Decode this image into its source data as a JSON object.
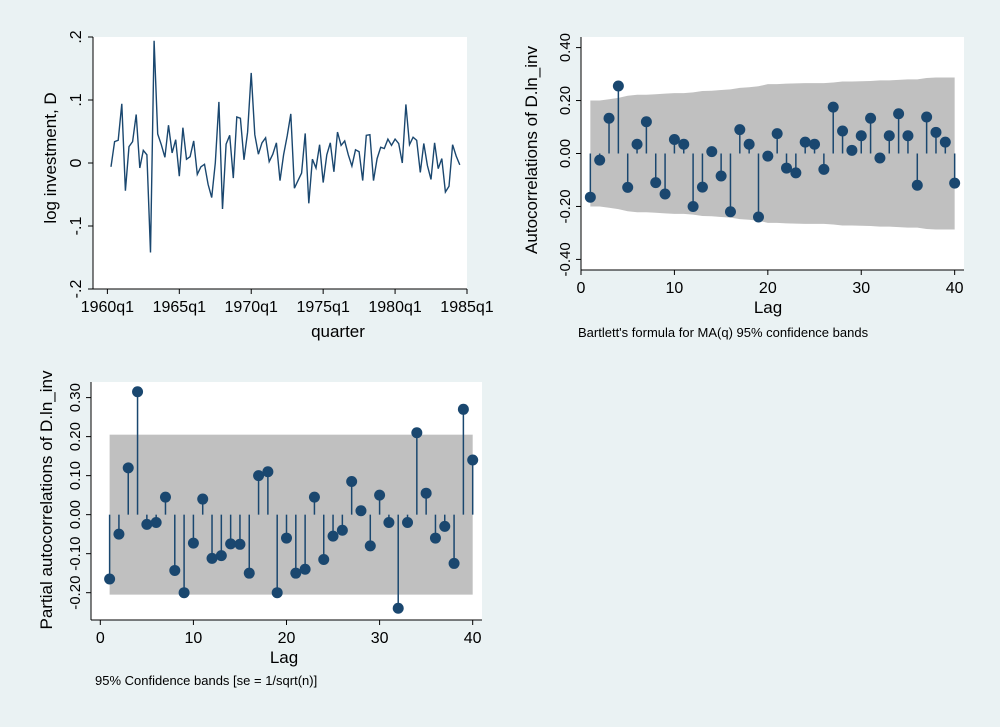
{
  "colors": {
    "background": "#eaf2f3",
    "panel": "#ffffff",
    "series": "#1a476f",
    "band": "#c0c0c0",
    "axis": "#000000"
  },
  "chart_data": [
    {
      "type": "line",
      "title": "",
      "xlabel": "quarter",
      "ylabel": "log investment, D",
      "x_start": "1960q2",
      "xlim": [
        "1959q1",
        "1985q1"
      ],
      "ylim": [
        -0.2,
        0.2
      ],
      "xticks": [
        "1960q1",
        "1965q1",
        "1970q1",
        "1975q1",
        "1980q1",
        "1985q1"
      ],
      "yticks": [
        ".2",
        ".1",
        "0",
        "-.1",
        "-.2"
      ],
      "grid": false,
      "y": [
        -0.006,
        0.034,
        0.036,
        0.094,
        -0.044,
        0.026,
        0.034,
        0.077,
        -0.008,
        0.02,
        0.013,
        -0.142,
        0.194,
        0.046,
        0.029,
        0.009,
        0.06,
        0.016,
        0.037,
        -0.021,
        0.056,
        0.006,
        0.01,
        0.035,
        -0.018,
        -0.006,
        -0.002,
        -0.034,
        -0.055,
        0.0,
        0.097,
        -0.073,
        0.03,
        0.044,
        -0.024,
        0.073,
        0.071,
        0.005,
        0.049,
        0.143,
        0.045,
        0.014,
        0.032,
        0.04,
        0.002,
        0.014,
        0.032,
        -0.028,
        0.013,
        0.043,
        0.078,
        -0.04,
        -0.028,
        -0.016,
        0.047,
        -0.064,
        0.006,
        -0.008,
        0.029,
        -0.031,
        0.013,
        0.032,
        -0.014,
        0.049,
        0.028,
        0.035,
        0.013,
        -0.005,
        0.021,
        0.018,
        -0.028,
        0.044,
        0.045,
        -0.028,
        0.007,
        0.025,
        0.023,
        0.038,
        0.028,
        0.038,
        0.031,
        0.0,
        0.093,
        0.029,
        0.041,
        0.036,
        -0.015,
        0.031,
        -0.004,
        -0.026,
        0.032,
        -0.009,
        0.007,
        -0.046,
        -0.037,
        0.029,
        0.011,
        -0.003
      ]
    },
    {
      "type": "line",
      "subtype": "acf",
      "xlabel": "Lag",
      "ylabel": "Autocorrelations of D.ln_inv",
      "note": "Bartlett's formula for MA(q) 95% confidence bands",
      "xlim": [
        0,
        41
      ],
      "ylim": [
        -0.44,
        0.44
      ],
      "xticks": [
        "0",
        "10",
        "20",
        "30",
        "40"
      ],
      "yticks": [
        "0.40",
        "0.20",
        "0.00",
        "-0.20",
        "-0.40"
      ],
      "grid": false,
      "x": [
        1,
        2,
        3,
        4,
        5,
        6,
        7,
        8,
        9,
        10,
        11,
        12,
        13,
        14,
        15,
        16,
        17,
        18,
        19,
        20,
        21,
        22,
        23,
        24,
        25,
        26,
        27,
        28,
        29,
        30,
        31,
        32,
        33,
        34,
        35,
        36,
        37,
        38,
        39,
        40
      ],
      "values": [
        -0.165,
        -0.025,
        0.133,
        0.255,
        -0.128,
        0.035,
        0.12,
        -0.11,
        -0.153,
        0.053,
        0.035,
        -0.2,
        -0.127,
        0.007,
        -0.085,
        -0.22,
        0.09,
        0.035,
        -0.24,
        -0.01,
        0.075,
        -0.055,
        -0.073,
        0.043,
        0.035,
        -0.06,
        0.175,
        0.085,
        0.012,
        0.067,
        0.133,
        -0.017,
        0.067,
        0.15,
        0.067,
        -0.12,
        0.138,
        0.08,
        0.043,
        -0.112
      ],
      "band": [
        0.2,
        0.2,
        0.205,
        0.21,
        0.218,
        0.222,
        0.222,
        0.224,
        0.226,
        0.228,
        0.228,
        0.231,
        0.236,
        0.237,
        0.24,
        0.242,
        0.248,
        0.25,
        0.254,
        0.262,
        0.262,
        0.264,
        0.265,
        0.266,
        0.266,
        0.266,
        0.268,
        0.272,
        0.272,
        0.273,
        0.274,
        0.276,
        0.276,
        0.278,
        0.28,
        0.28,
        0.285,
        0.287,
        0.287,
        0.287
      ]
    },
    {
      "type": "line",
      "subtype": "pacf",
      "xlabel": "Lag",
      "ylabel": "Partial autocorrelations of D.ln_inv",
      "note": "95% Confidence bands [se = 1/sqrt(n)]",
      "xlim": [
        -1,
        41
      ],
      "ylim": [
        -0.27,
        0.34
      ],
      "xticks": [
        "0",
        "10",
        "20",
        "30",
        "40"
      ],
      "yticks": [
        "0.30",
        "0.20",
        "0.10",
        "0.00",
        "-0.10",
        "-0.20"
      ],
      "grid": false,
      "x": [
        1,
        2,
        3,
        4,
        5,
        6,
        7,
        8,
        9,
        10,
        11,
        12,
        13,
        14,
        15,
        16,
        17,
        18,
        19,
        20,
        21,
        22,
        23,
        24,
        25,
        26,
        27,
        28,
        29,
        30,
        31,
        32,
        33,
        34,
        35,
        36,
        37,
        38,
        39,
        40
      ],
      "values": [
        -0.165,
        -0.05,
        0.12,
        0.315,
        -0.025,
        -0.02,
        0.045,
        -0.143,
        -0.2,
        -0.073,
        0.04,
        -0.112,
        -0.105,
        -0.075,
        -0.076,
        -0.15,
        0.1,
        0.11,
        -0.2,
        -0.06,
        -0.15,
        -0.14,
        0.045,
        -0.115,
        -0.055,
        -0.04,
        0.085,
        0.01,
        -0.08,
        0.05,
        -0.02,
        -0.24,
        -0.02,
        0.21,
        0.055,
        -0.06,
        -0.03,
        -0.125,
        0.27,
        0.14
      ],
      "band": 0.205
    }
  ]
}
